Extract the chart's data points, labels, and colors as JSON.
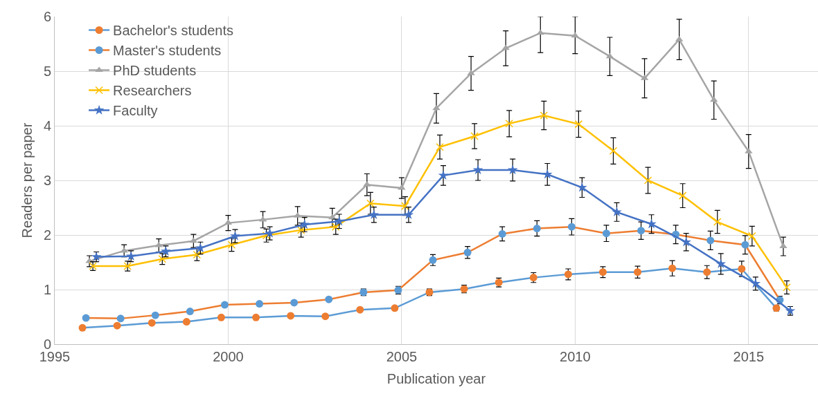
{
  "chart_data": {
    "type": "line",
    "xlabel": "Publication year",
    "ylabel": "Readers per paper",
    "xlim": [
      1995,
      2017
    ],
    "xticks": [
      1995,
      2000,
      2005,
      2010,
      2015
    ],
    "ylim": [
      0,
      6
    ],
    "yticks": [
      0,
      1,
      2,
      3,
      4,
      5,
      6
    ],
    "grid": true,
    "legend": "top left",
    "line_style": "solid",
    "series": [
      {
        "name": "Bachelor's students",
        "color": "#5b9bd5",
        "marker": "circle",
        "colors": [
          "#ed7d31",
          "#ed7d31",
          "#ed7d31",
          "#ed7d31",
          "#ed7d31",
          "#ed7d31",
          "#ed7d31",
          "#ed7d31",
          "#ed7d31",
          "#ed7d31",
          "#ed7d31",
          "#ed7d31",
          "#ed7d31",
          "#ed7d31",
          "#ed7d31",
          "#ed7d31",
          "#ed7d31",
          "#ed7d31",
          "#ed7d31",
          "#ed7d31",
          "#ed7d31"
        ],
        "x": [
          1995.8,
          1996.8,
          1997.8,
          1998.8,
          1999.8,
          2000.8,
          2001.8,
          2002.8,
          2003.8,
          2004.8,
          2005.8,
          2006.8,
          2007.8,
          2008.8,
          2009.8,
          2010.8,
          2011.8,
          2012.8,
          2013.8,
          2014.8,
          2015.8
        ],
        "values": [
          0.3,
          0.34,
          0.39,
          0.41,
          0.49,
          0.49,
          0.52,
          0.51,
          0.63,
          0.66,
          0.95,
          1.01,
          1.13,
          1.22,
          1.28,
          1.32,
          1.32,
          1.39,
          1.32,
          1.38,
          0.66
        ],
        "errors": [
          null,
          null,
          null,
          null,
          null,
          null,
          null,
          null,
          null,
          null,
          0.06,
          0.07,
          0.08,
          0.09,
          0.1,
          0.1,
          0.11,
          0.14,
          0.12,
          0.14,
          0.05
        ]
      },
      {
        "name": "Master's students",
        "color": "#ed7d31",
        "marker": "circle",
        "colors": [
          "#5b9bd5",
          "#5b9bd5",
          "#5b9bd5",
          "#5b9bd5",
          "#5b9bd5",
          "#5b9bd5",
          "#5b9bd5",
          "#5b9bd5",
          "#5b9bd5",
          "#5b9bd5",
          "#5b9bd5",
          "#5b9bd5",
          "#5b9bd5",
          "#5b9bd5",
          "#5b9bd5",
          "#5b9bd5",
          "#5b9bd5",
          "#5b9bd5",
          "#5b9bd5",
          "#5b9bd5",
          "#5b9bd5"
        ],
        "x": [
          1995.9,
          1996.9,
          1997.9,
          1998.9,
          1999.9,
          2000.9,
          2001.9,
          2002.9,
          2003.9,
          2004.9,
          2005.9,
          2006.9,
          2007.9,
          2008.9,
          2009.9,
          2010.9,
          2011.9,
          2012.9,
          2013.9,
          2014.9,
          2015.9
        ],
        "values": [
          0.48,
          0.47,
          0.53,
          0.6,
          0.72,
          0.74,
          0.76,
          0.82,
          0.95,
          0.99,
          1.54,
          1.68,
          2.02,
          2.12,
          2.15,
          2.03,
          2.08,
          2.01,
          1.9,
          1.82,
          0.81
        ],
        "errors": [
          null,
          null,
          null,
          null,
          null,
          null,
          null,
          null,
          0.06,
          0.07,
          0.1,
          0.11,
          0.13,
          0.14,
          0.15,
          0.15,
          0.16,
          0.17,
          0.17,
          0.17,
          0.07
        ]
      },
      {
        "name": "PhD students",
        "color": "#a5a5a5",
        "marker": "triangle",
        "x": [
          1996,
          1997,
          1998,
          1999,
          2000,
          2001,
          2002,
          2003,
          2004,
          2005,
          2006,
          2007,
          2008,
          2009,
          2010,
          2011,
          2012,
          2013,
          2014,
          2015,
          2016
        ],
        "values": [
          1.52,
          1.71,
          1.81,
          1.89,
          2.22,
          2.28,
          2.35,
          2.32,
          2.92,
          2.86,
          4.32,
          4.96,
          5.42,
          5.7,
          5.65,
          5.27,
          4.87,
          5.58,
          4.47,
          3.53,
          1.79
        ],
        "errors": [
          0.1,
          0.11,
          0.12,
          0.12,
          0.14,
          0.15,
          0.17,
          0.17,
          0.2,
          0.19,
          0.27,
          0.31,
          0.32,
          [
            5.34,
            6
          ],
          [
            5.32,
            6
          ],
          0.35,
          0.36,
          0.37,
          0.35,
          0.31,
          0.17
        ]
      },
      {
        "name": "Researchers",
        "color": "#ffc000",
        "marker": "cross",
        "x": [
          1996.1,
          1997.1,
          1998.1,
          1999.1,
          2000.1,
          2001.1,
          2002.1,
          2003.1,
          2004.1,
          2005.1,
          2006.1,
          2007.1,
          2008.1,
          2009.1,
          2010.1,
          2011.1,
          2012.1,
          2013.1,
          2014.1,
          2015.1,
          2016.1
        ],
        "values": [
          1.43,
          1.43,
          1.56,
          1.64,
          1.82,
          1.99,
          2.09,
          2.15,
          2.58,
          2.53,
          3.61,
          3.81,
          4.04,
          4.19,
          4.03,
          3.54,
          3.0,
          2.72,
          2.24,
          1.98,
          1.04
        ],
        "errors": [
          0.08,
          0.09,
          0.1,
          0.11,
          0.12,
          0.12,
          0.13,
          0.14,
          0.2,
          0.17,
          0.22,
          0.23,
          0.24,
          0.26,
          0.24,
          0.24,
          0.24,
          0.22,
          0.21,
          0.18,
          0.12
        ]
      },
      {
        "name": "Faculty",
        "color": "#4472c4",
        "marker": "star",
        "x": [
          1996.2,
          1997.2,
          1998.2,
          1999.2,
          2000.2,
          2001.2,
          2002.2,
          2003.2,
          2004.2,
          2005.2,
          2006.2,
          2007.2,
          2008.2,
          2009.2,
          2010.2,
          2011.2,
          2012.2,
          2013.2,
          2014.2,
          2015.2,
          2016.2
        ],
        "values": [
          1.6,
          1.61,
          1.7,
          1.76,
          1.98,
          2.03,
          2.19,
          2.25,
          2.37,
          2.37,
          3.09,
          3.19,
          3.19,
          3.11,
          2.87,
          2.42,
          2.2,
          1.87,
          1.47,
          1.11,
          0.61
        ],
        "errors": [
          0.09,
          0.1,
          0.1,
          0.11,
          0.12,
          0.12,
          0.13,
          0.13,
          0.14,
          0.14,
          0.18,
          0.19,
          0.2,
          0.2,
          0.18,
          0.17,
          0.17,
          0.16,
          0.19,
          0.12,
          0.08
        ]
      }
    ]
  }
}
